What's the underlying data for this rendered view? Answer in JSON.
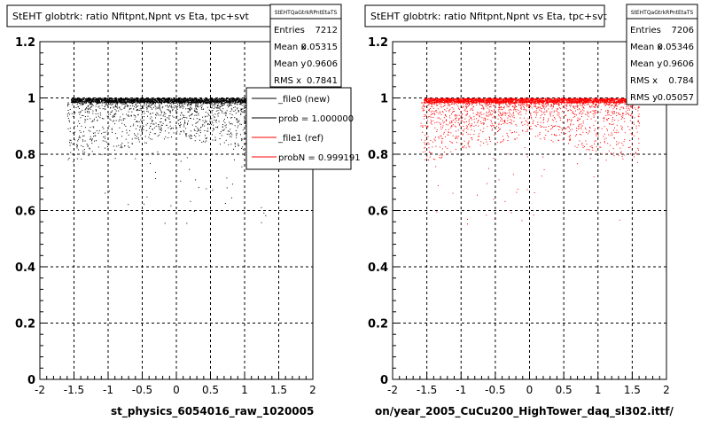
{
  "chart_data": [
    {
      "type": "scatter",
      "title": "StEHT globtrk: ratio Nfitpnt,Npnt vs Eta, tpc+svt",
      "xlabel": "st_physics_6054016_raw_1020005",
      "ylabel": "",
      "xlim": [
        -2,
        2
      ],
      "ylim": [
        0,
        1.2
      ],
      "x_ticks": [
        "-2",
        "-1.5",
        "-1",
        "-0.5",
        "0",
        "0.5",
        "1",
        "1.5",
        "2"
      ],
      "y_ticks": [
        "0",
        "0.2",
        "0.4",
        "0.6",
        "0.8",
        "1",
        "1.2"
      ],
      "grid": true,
      "series": [
        {
          "name": "_file0 (new)",
          "color": "#000000",
          "x_range": [
            -1.6,
            1.6
          ],
          "band": [
            0.985,
            1.0
          ]
        }
      ],
      "stats": {
        "header": "StEHTQaGtrkRPntEtaTS",
        "entries_label": "Entries",
        "entries": "7212",
        "mean_x_label": "Mean x",
        "mean_x": "0.05315",
        "mean_y_label": "Mean y",
        "mean_y": "0.9606",
        "rms_x_label": "RMS x",
        "rms_x": "0.7841"
      },
      "legend": {
        "placement": "top-right",
        "entries": [
          {
            "label": "_file0 (new)",
            "color": "#000000"
          },
          {
            "label": "prob = 1.000000",
            "color": "#000000"
          },
          {
            "label": "_file1 (ref)",
            "color": "#ff0000"
          },
          {
            "label": "probN = 0.999191",
            "color": "#ff0000"
          }
        ]
      }
    },
    {
      "type": "scatter",
      "title": "StEHT globtrk: ratio Nfitpnt,Npnt vs Eta, tpc+svt",
      "xlabel": "on/year_2005_CuCu200_HighTower_daq_sl302.ittf/",
      "ylabel": "",
      "xlim": [
        -2,
        2
      ],
      "ylim": [
        0,
        1.2
      ],
      "x_ticks": [
        "-2",
        "-1.5",
        "-1",
        "-0.5",
        "0",
        "0.5",
        "1",
        "1.5",
        "2"
      ],
      "y_ticks": [
        "0",
        "0.2",
        "0.4",
        "0.6",
        "0.8",
        "1",
        "1.2"
      ],
      "grid": true,
      "series": [
        {
          "name": "_file1 (ref)",
          "color": "#ff0000",
          "x_range": [
            -1.6,
            1.6
          ],
          "band": [
            0.985,
            1.0
          ]
        }
      ],
      "stats": {
        "header": "StEHTQaGtrkRPntEtaTS",
        "entries_label": "Entries",
        "entries": "7206",
        "mean_x_label": "Mean x",
        "mean_x": "0.05346",
        "mean_y_label": "Mean y",
        "mean_y": "0.9606",
        "rms_x_label": "RMS x",
        "rms_x": "0.784",
        "rms_y_label": "RMS y",
        "rms_y": "0.05057"
      }
    }
  ]
}
